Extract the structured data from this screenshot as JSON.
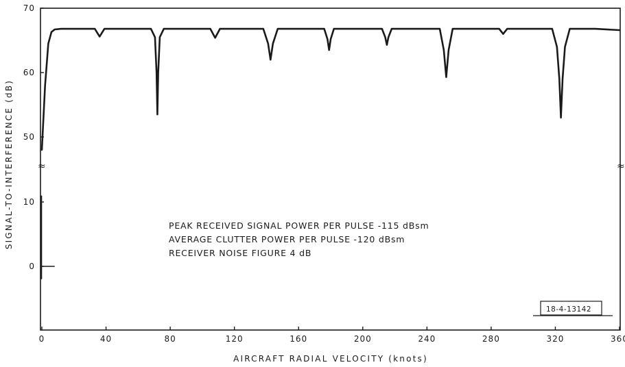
{
  "chart_data": {
    "type": "line",
    "title": "",
    "xlabel": "AIRCRAFT RADIAL VELOCITY (knots)",
    "ylabel": "SIGNAL-TO-INTERFERENCE (dB)",
    "xlim": [
      0,
      360
    ],
    "x_ticks": [
      "0",
      "40",
      "80",
      "120",
      "160",
      "200",
      "240",
      "280",
      "320",
      "360"
    ],
    "y_ticks_upper": [
      "70",
      "60",
      "50"
    ],
    "y_ticks_lower": [
      "10",
      "0"
    ],
    "axis_break_marks": [
      "≈",
      "≈"
    ],
    "grid": false,
    "legend": "none",
    "series": [
      {
        "values_note_free": true,
        "x": [
          0,
          2,
          4,
          6,
          8,
          12,
          20,
          33,
          36,
          39,
          50,
          68,
          70.5,
          71.5,
          72,
          72.5,
          73.5,
          76,
          90,
          105,
          108,
          111,
          125,
          138,
          141,
          142.5,
          144,
          147,
          160,
          176,
          178,
          179,
          180,
          182,
          195,
          212,
          214,
          215,
          216,
          218,
          230,
          248,
          250.5,
          252,
          253.5,
          256,
          270,
          285,
          287.5,
          290,
          305,
          318,
          321,
          322.5,
          323.5,
          324.5,
          326,
          329,
          345,
          360
        ],
        "y": [
          48,
          58,
          64.5,
          66.3,
          66.7,
          66.8,
          66.8,
          66.8,
          65.6,
          66.8,
          66.8,
          66.8,
          65.5,
          60,
          53.5,
          60,
          65.5,
          66.8,
          66.8,
          66.8,
          65.4,
          66.8,
          66.8,
          66.8,
          64.5,
          62,
          64.5,
          66.8,
          66.8,
          66.8,
          65.2,
          63.5,
          65.2,
          66.8,
          66.8,
          66.8,
          65.5,
          64.3,
          65.5,
          66.8,
          66.8,
          66.8,
          63.5,
          59.3,
          63.5,
          66.8,
          66.8,
          66.8,
          66,
          66.8,
          66.8,
          66.8,
          64,
          59,
          53,
          59,
          64,
          66.8,
          66.8,
          66.6
        ]
      }
    ],
    "lower_segment": {
      "x_end": 8,
      "y": 0,
      "spike_top": 11,
      "spike_bottom": -2
    },
    "annotations": [
      "PEAK RECEIVED SIGNAL POWER PER PULSE -115 dBsm",
      "AVERAGE CLUTTER POWER PER PULSE -120 dBsm",
      "RECEIVER NOISE FIGURE 4 dB"
    ],
    "stamp": "18-4-13142"
  }
}
